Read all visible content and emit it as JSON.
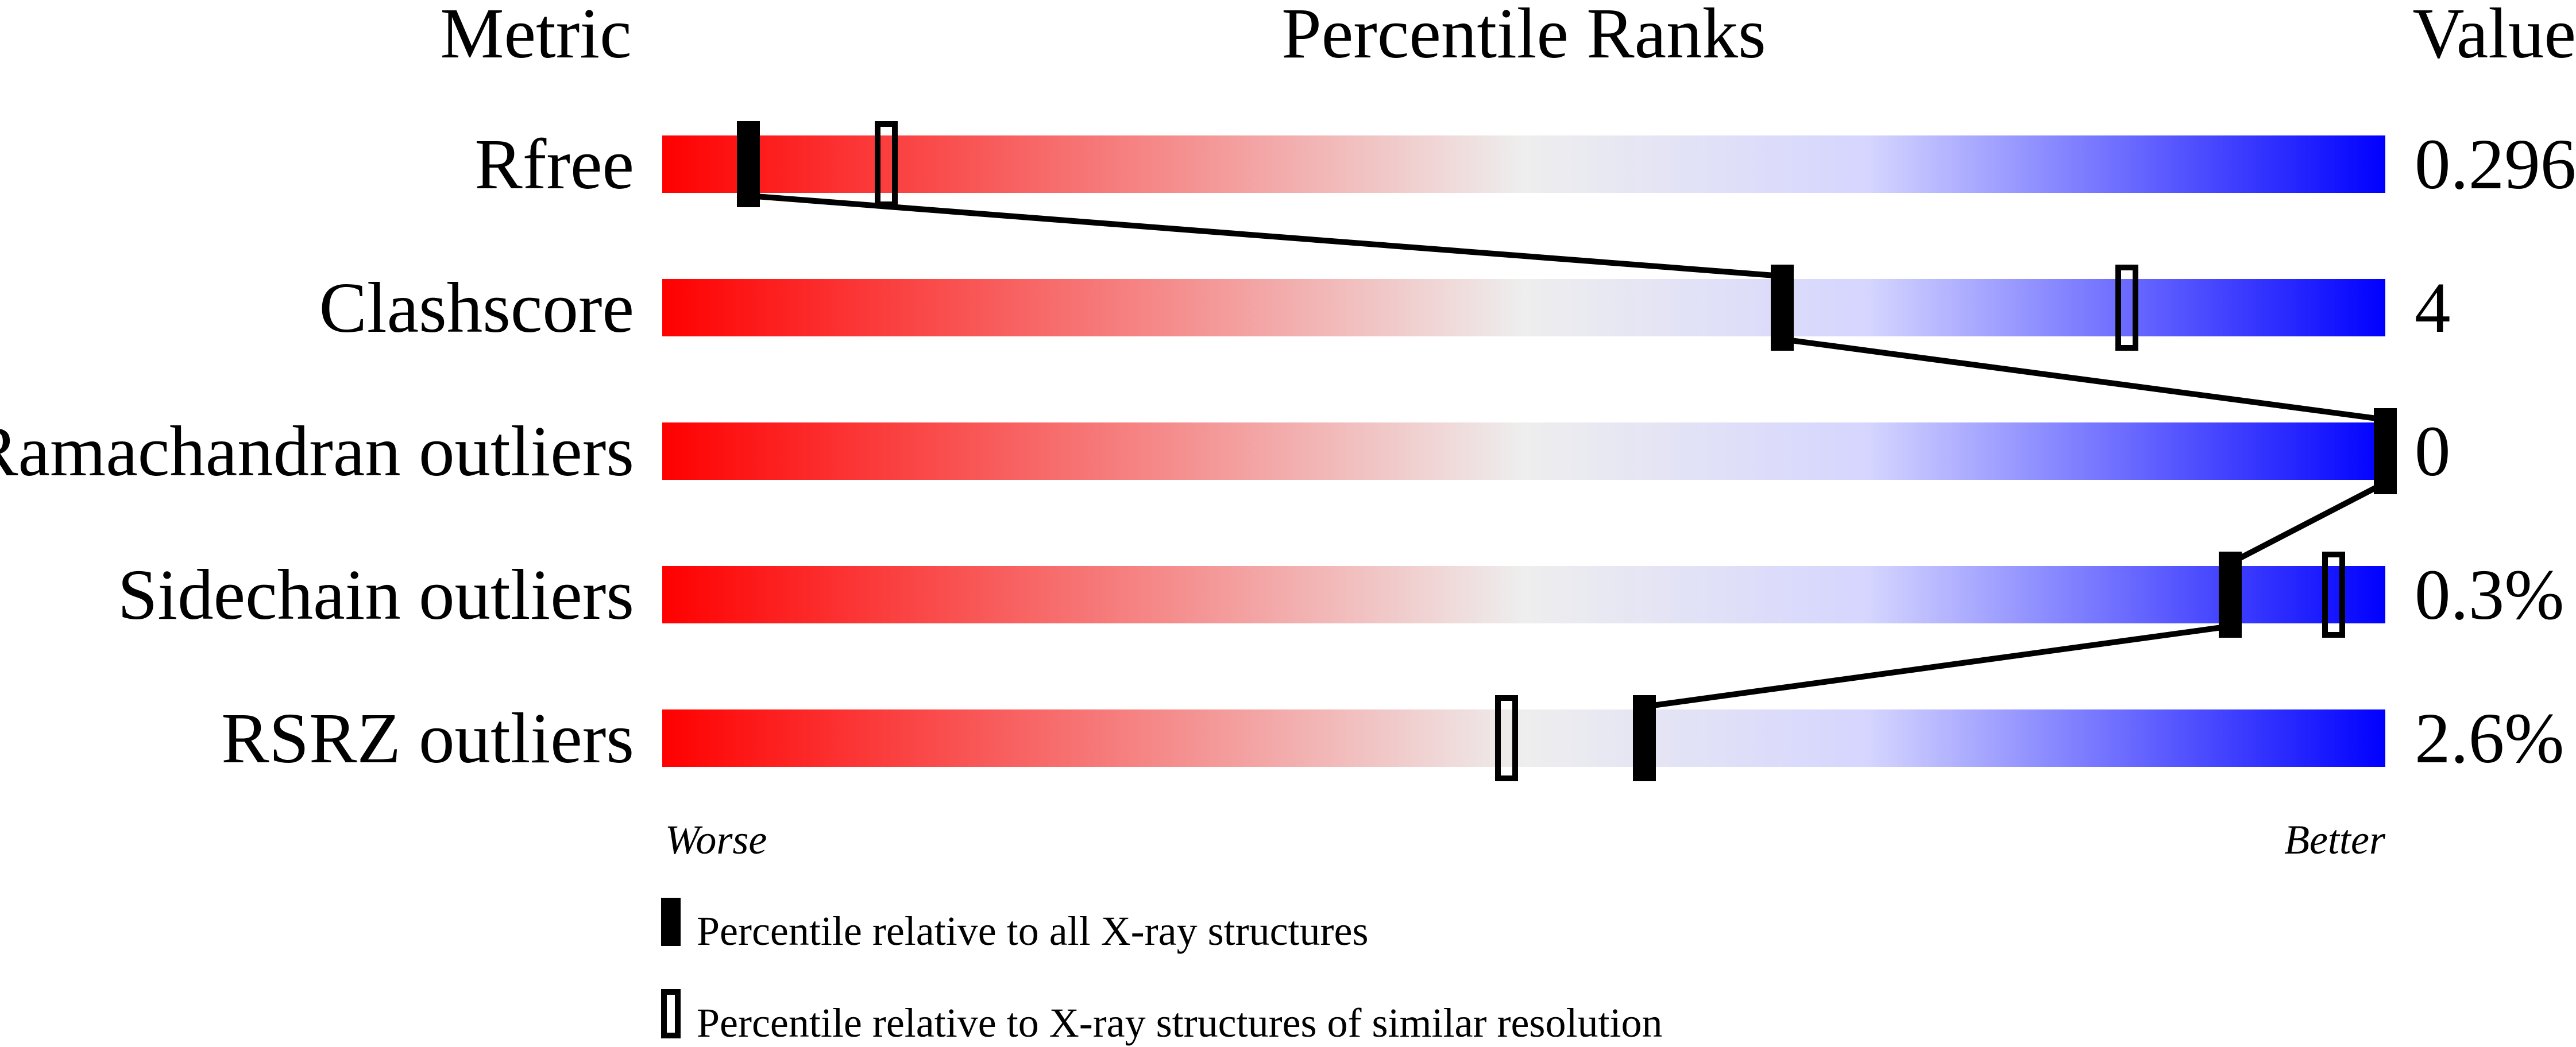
{
  "chart_data": {
    "type": "percentile-slider",
    "headers": {
      "metric": "Metric",
      "ranks": "Percentile Ranks",
      "value": "Value"
    },
    "xlim": [
      0,
      100
    ],
    "axis_ends": {
      "left": "Worse",
      "right": "Better"
    },
    "gradient_colors": {
      "worse": "#ff0000",
      "middle": "#eeeeee",
      "light_blue": "#d5d5ff",
      "better": "#0000ff"
    },
    "rows": [
      {
        "metric": "Rfree",
        "value": "0.296",
        "percentile_all": 5,
        "percentile_similar": 13
      },
      {
        "metric": "Clashscore",
        "value": "4",
        "percentile_all": 65,
        "percentile_similar": 85
      },
      {
        "metric": "Ramachandran outliers",
        "value": "0",
        "percentile_all": 100,
        "percentile_similar": 100
      },
      {
        "metric": "Sidechain outliers",
        "value": "0.3%",
        "percentile_all": 91,
        "percentile_similar": 97
      },
      {
        "metric": "RSRZ outliers",
        "value": "2.6%",
        "percentile_all": 57,
        "percentile_similar": 49
      }
    ],
    "legend": [
      {
        "marker": "filled",
        "label": "Percentile relative to all X-ray structures"
      },
      {
        "marker": "open",
        "label": "Percentile relative to X-ray structures of similar resolution"
      }
    ]
  }
}
